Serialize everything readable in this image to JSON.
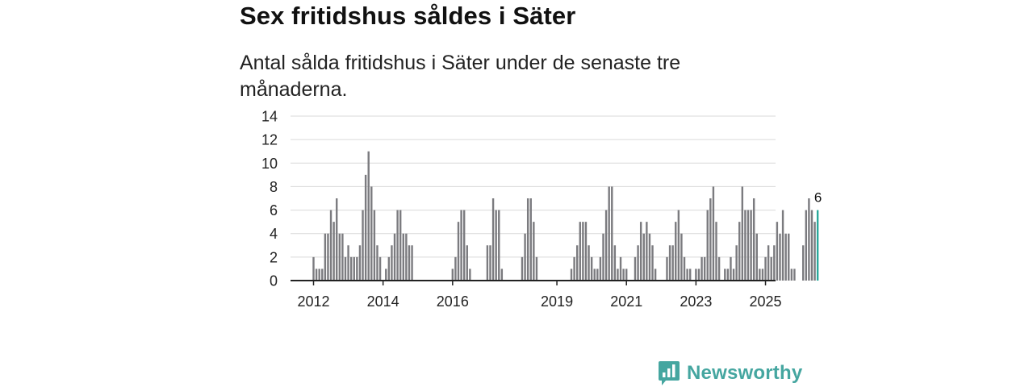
{
  "title": "Sex fritidshus såldes i Säter",
  "subtitle": "Antal sålda fritidshus i Säter under de senaste tre månaderna.",
  "brand": "Newsworthy",
  "colors": {
    "bar": "#7b7b7f",
    "highlight": "#2aa99b",
    "grid": "#d9d9d9",
    "axis": "#222222",
    "brand": "#45a6a0"
  },
  "chart_data": {
    "type": "bar",
    "ylim": [
      0,
      14
    ],
    "yticks": [
      0,
      2,
      4,
      6,
      8,
      10,
      12,
      14
    ],
    "grid": true,
    "start": "2012-01",
    "xtick_labels": [
      "2012",
      "2014",
      "2016",
      "2019",
      "2021",
      "2023",
      "2025"
    ],
    "values": [
      2,
      1,
      1,
      1,
      4,
      4,
      6,
      5,
      7,
      4,
      4,
      2,
      3,
      2,
      2,
      2,
      3,
      6,
      9,
      11,
      8,
      6,
      3,
      2,
      0,
      1,
      2,
      3,
      4,
      6,
      6,
      4,
      4,
      3,
      3,
      0,
      0,
      0,
      0,
      0,
      0,
      0,
      0,
      0,
      0,
      0,
      0,
      0,
      1,
      2,
      5,
      6,
      6,
      3,
      1,
      0,
      0,
      0,
      0,
      0,
      3,
      3,
      7,
      6,
      6,
      1,
      0,
      0,
      0,
      0,
      0,
      0,
      2,
      4,
      7,
      7,
      5,
      2,
      0,
      0,
      0,
      0,
      0,
      0,
      0,
      0,
      0,
      0,
      0,
      1,
      2,
      3,
      5,
      5,
      5,
      3,
      2,
      1,
      1,
      2,
      4,
      6,
      8,
      8,
      3,
      1,
      2,
      1,
      1,
      0,
      0,
      2,
      3,
      5,
      4,
      5,
      4,
      3,
      1,
      0,
      0,
      0,
      2,
      3,
      3,
      5,
      6,
      4,
      2,
      1,
      1,
      0,
      1,
      1,
      2,
      2,
      6,
      7,
      8,
      5,
      2,
      0,
      1,
      1,
      2,
      1,
      3,
      5,
      8,
      6,
      6,
      6,
      7,
      4,
      1,
      1,
      2,
      3,
      2,
      3,
      5,
      4,
      6,
      4,
      4,
      1,
      1,
      0,
      0,
      3,
      6,
      7,
      6,
      5,
      6
    ],
    "highlight_last": true,
    "data_labels": [
      {
        "value": "6",
        "target": "last"
      }
    ]
  }
}
